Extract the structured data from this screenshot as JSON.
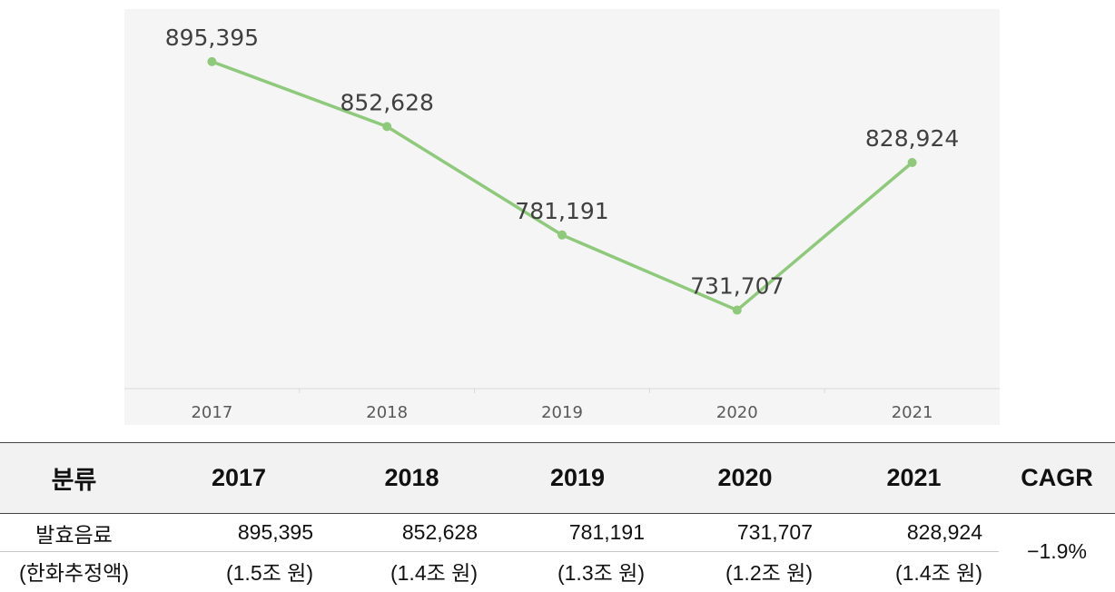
{
  "chart_data": {
    "type": "line",
    "categories": [
      "2017",
      "2018",
      "2019",
      "2020",
      "2021"
    ],
    "values": [
      895395,
      852628,
      781191,
      731707,
      828924
    ],
    "data_labels": [
      "895,395",
      "852,628",
      "781,191",
      "731,707",
      "828,924"
    ],
    "title": "",
    "xlabel": "",
    "ylabel": "",
    "ylim": [
      680000,
      930000
    ],
    "grid": false,
    "legend": "none",
    "line_color": "#8fc97c",
    "panel_background": "#f5f5f5"
  },
  "table": {
    "headers": [
      "분류",
      "2017",
      "2018",
      "2019",
      "2020",
      "2021",
      "CAGR"
    ],
    "rows": [
      [
        "발효음료",
        "895,395",
        "852,628",
        "781,191",
        "731,707",
        "828,924"
      ],
      [
        "(한화추정액)",
        "(1.5조 원)",
        "(1.4조 원)",
        "(1.3조 원)",
        "(1.2조 원)",
        "(1.4조 원)"
      ]
    ],
    "cagr": "−1.9%"
  }
}
